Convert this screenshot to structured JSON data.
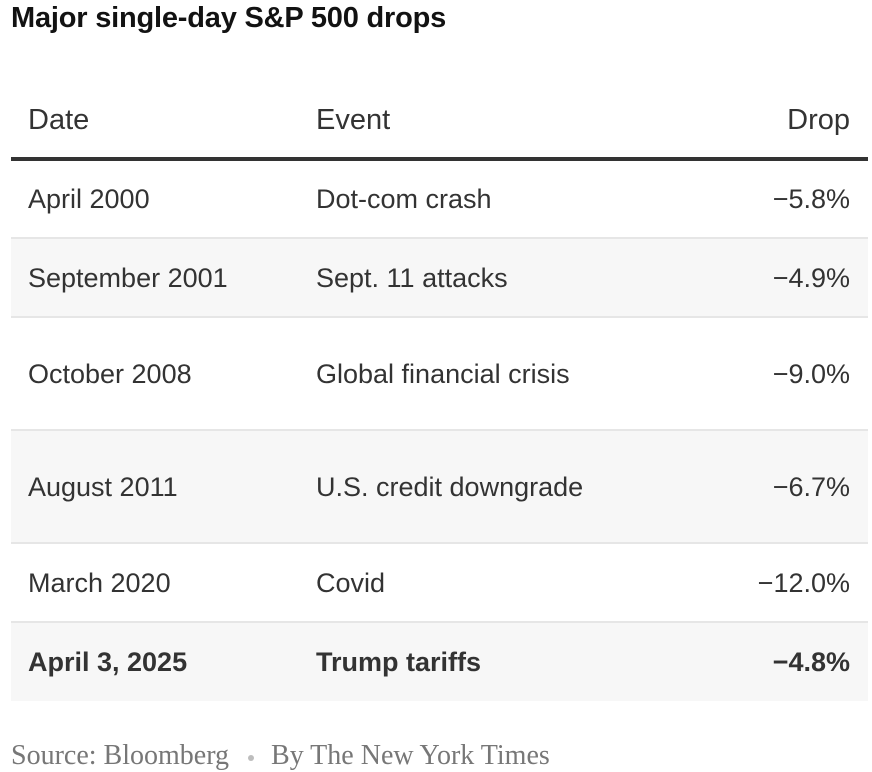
{
  "chart_data": {
    "type": "table",
    "title": "Major single-day S&P 500 drops",
    "columns": [
      "Date",
      "Event",
      "Drop"
    ],
    "rows": [
      {
        "date": "April 2000",
        "event": "Dot-com crash",
        "drop": "−5.8%"
      },
      {
        "date": "September 2001",
        "event": "Sept. 11 attacks",
        "drop": "−4.9%"
      },
      {
        "date": "October 2008",
        "event": "Global financial crisis",
        "drop": "−9.0%"
      },
      {
        "date": "August 2011",
        "event": "U.S. credit downgrade",
        "drop": "−6.7%"
      },
      {
        "date": "March 2020",
        "event": "Covid",
        "drop": "−12.0%"
      },
      {
        "date": "April 3, 2025",
        "event": "Trump tariffs",
        "drop": "−4.8%"
      }
    ],
    "values": [
      -5.8,
      -4.9,
      -9.0,
      -6.7,
      -12.0,
      -4.8
    ],
    "highlighted_row": 5,
    "row_stripe_color": "#f7f7f7",
    "header_rule_color": "#333333"
  },
  "footer": {
    "source": "Source: Bloomberg",
    "byline": "By The New York Times"
  }
}
